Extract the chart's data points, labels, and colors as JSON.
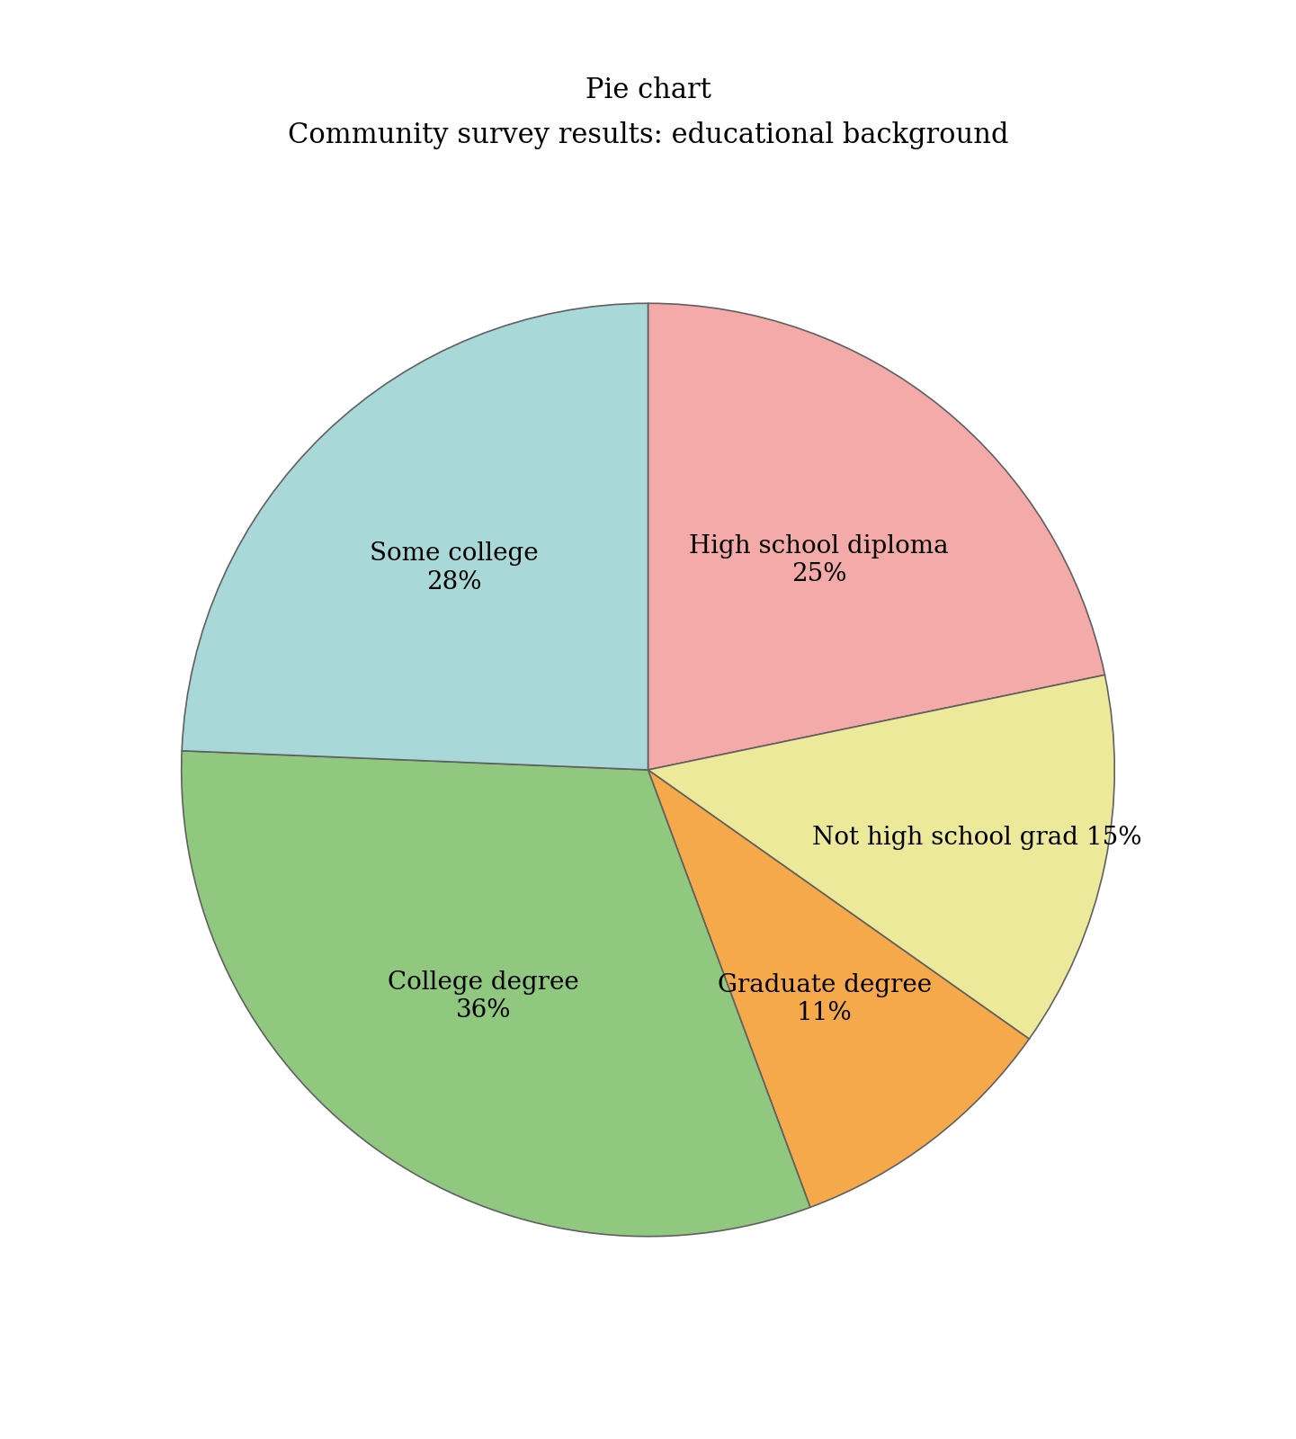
{
  "title": "Pie chart\nCommunity survey results: educational background",
  "slices": [
    {
      "label": "High school diploma\n25%",
      "value": 25,
      "color": "#F5AAAA",
      "label_r": 0.58
    },
    {
      "label": "Not high school grad 15%",
      "value": 15,
      "color": "#EDE99A",
      "label_r": 0.72
    },
    {
      "label": "Graduate degree\n11%",
      "value": 11,
      "color": "#F5A94A",
      "label_r": 0.62
    },
    {
      "label": "College degree\n36%",
      "value": 36,
      "color": "#90C880",
      "label_r": 0.6
    },
    {
      "label": "Some college\n28%",
      "value": 28,
      "color": "#A8D8D8",
      "label_r": 0.6
    }
  ],
  "title_fontsize": 22,
  "label_fontsize": 20,
  "background_color": "#ffffff",
  "startangle": 90,
  "counterclock": false
}
